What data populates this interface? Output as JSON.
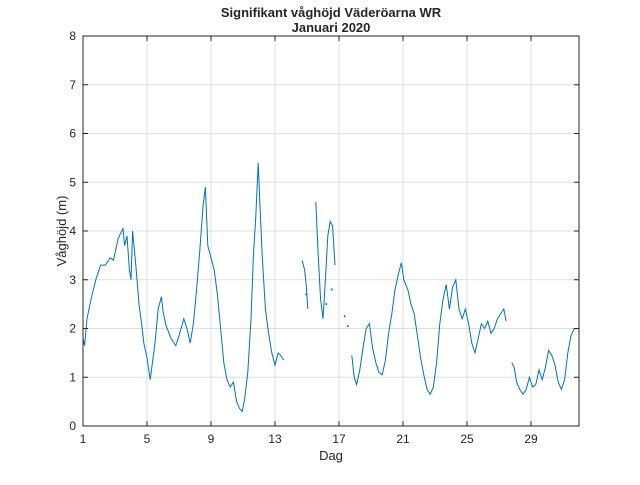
{
  "chart_data": {
    "type": "line",
    "title": "Signifikant våghöjd Väderöarna WR",
    "subtitle": "Januari 2020",
    "xlabel": "Dag",
    "ylabel": "Våghöjd (m)",
    "xlim": [
      1,
      32
    ],
    "ylim": [
      0,
      8
    ],
    "xticks": [
      1,
      5,
      9,
      13,
      17,
      21,
      25,
      29
    ],
    "yticks": [
      0,
      1,
      2,
      3,
      4,
      5,
      6,
      7,
      8
    ],
    "grid": true,
    "series": [
      {
        "name": "Signifikant våghöjd",
        "color": "#0072bd",
        "segments": [
          [
            [
              1.0,
              1.8
            ],
            [
              1.1,
              1.65
            ],
            [
              1.25,
              2.2
            ],
            [
              1.5,
              2.6
            ],
            [
              1.8,
              3.0
            ],
            [
              2.1,
              3.3
            ],
            [
              2.4,
              3.3
            ],
            [
              2.7,
              3.45
            ],
            [
              2.9,
              3.4
            ],
            [
              3.2,
              3.85
            ],
            [
              3.5,
              4.05
            ],
            [
              3.6,
              3.7
            ],
            [
              3.75,
              3.9
            ],
            [
              3.9,
              3.2
            ],
            [
              4.0,
              3.0
            ],
            [
              4.1,
              4.0
            ],
            [
              4.3,
              3.3
            ],
            [
              4.5,
              2.5
            ],
            [
              4.7,
              2.0
            ],
            [
              4.8,
              1.7
            ],
            [
              5.0,
              1.4
            ],
            [
              5.2,
              0.95
            ],
            [
              5.3,
              1.2
            ],
            [
              5.5,
              1.7
            ],
            [
              5.7,
              2.4
            ],
            [
              5.9,
              2.65
            ],
            [
              6.0,
              2.35
            ],
            [
              6.2,
              2.05
            ],
            [
              6.5,
              1.8
            ],
            [
              6.8,
              1.65
            ],
            [
              7.0,
              1.85
            ],
            [
              7.3,
              2.2
            ],
            [
              7.5,
              2.0
            ],
            [
              7.7,
              1.7
            ],
            [
              7.9,
              2.1
            ],
            [
              8.1,
              2.8
            ],
            [
              8.3,
              3.6
            ],
            [
              8.5,
              4.5
            ],
            [
              8.65,
              4.9
            ],
            [
              8.8,
              3.7
            ],
            [
              9.0,
              3.45
            ],
            [
              9.2,
              3.2
            ],
            [
              9.4,
              2.7
            ],
            [
              9.6,
              2.0
            ],
            [
              9.8,
              1.3
            ],
            [
              10.0,
              0.95
            ],
            [
              10.2,
              0.8
            ],
            [
              10.4,
              0.9
            ],
            [
              10.6,
              0.5
            ],
            [
              10.8,
              0.35
            ],
            [
              10.95,
              0.3
            ],
            [
              11.1,
              0.55
            ],
            [
              11.3,
              1.1
            ],
            [
              11.5,
              2.2
            ],
            [
              11.65,
              3.5
            ],
            [
              11.8,
              4.3
            ],
            [
              11.95,
              5.4
            ],
            [
              12.05,
              4.6
            ],
            [
              12.2,
              3.5
            ],
            [
              12.4,
              2.4
            ],
            [
              12.6,
              1.9
            ],
            [
              12.8,
              1.5
            ],
            [
              13.0,
              1.25
            ],
            [
              13.2,
              1.5
            ],
            [
              13.35,
              1.45
            ],
            [
              13.55,
              1.35
            ]
          ],
          [
            [
              14.7,
              3.4
            ],
            [
              14.85,
              3.2
            ],
            [
              14.95,
              2.9
            ],
            [
              15.05,
              2.4
            ]
          ],
          [
            [
              15.55,
              4.6
            ],
            [
              15.7,
              3.5
            ],
            [
              15.85,
              2.6
            ],
            [
              16.0,
              2.2
            ],
            [
              16.15,
              3.0
            ],
            [
              16.3,
              3.9
            ],
            [
              16.45,
              4.2
            ],
            [
              16.6,
              4.1
            ],
            [
              16.75,
              3.3
            ]
          ],
          [
            [
              17.8,
              1.45
            ],
            [
              17.95,
              1.0
            ],
            [
              18.1,
              0.85
            ],
            [
              18.3,
              1.15
            ],
            [
              18.5,
              1.6
            ],
            [
              18.7,
              2.0
            ],
            [
              18.9,
              2.1
            ],
            [
              19.1,
              1.6
            ],
            [
              19.3,
              1.3
            ],
            [
              19.5,
              1.1
            ],
            [
              19.7,
              1.05
            ],
            [
              19.9,
              1.35
            ],
            [
              20.1,
              1.9
            ],
            [
              20.3,
              2.3
            ],
            [
              20.5,
              2.8
            ],
            [
              20.7,
              3.1
            ],
            [
              20.9,
              3.35
            ],
            [
              21.05,
              3.0
            ],
            [
              21.3,
              2.8
            ],
            [
              21.5,
              2.5
            ],
            [
              21.7,
              2.3
            ],
            [
              21.9,
              1.85
            ],
            [
              22.1,
              1.4
            ],
            [
              22.3,
              1.05
            ],
            [
              22.5,
              0.75
            ],
            [
              22.7,
              0.65
            ],
            [
              22.9,
              0.8
            ],
            [
              23.1,
              1.3
            ],
            [
              23.3,
              2.1
            ],
            [
              23.5,
              2.6
            ],
            [
              23.7,
              2.9
            ],
            [
              23.9,
              2.4
            ],
            [
              24.1,
              2.85
            ],
            [
              24.3,
              3.0
            ],
            [
              24.5,
              2.4
            ],
            [
              24.7,
              2.2
            ],
            [
              24.9,
              2.4
            ],
            [
              25.1,
              2.1
            ],
            [
              25.3,
              1.7
            ],
            [
              25.5,
              1.5
            ],
            [
              25.7,
              1.8
            ],
            [
              25.9,
              2.1
            ],
            [
              26.1,
              2.0
            ],
            [
              26.3,
              2.15
            ],
            [
              26.5,
              1.9
            ],
            [
              26.7,
              2.0
            ],
            [
              26.9,
              2.2
            ],
            [
              27.1,
              2.3
            ],
            [
              27.3,
              2.4
            ],
            [
              27.45,
              2.15
            ]
          ],
          [
            [
              27.8,
              1.3
            ],
            [
              27.95,
              1.2
            ],
            [
              28.1,
              0.9
            ],
            [
              28.3,
              0.75
            ],
            [
              28.5,
              0.65
            ],
            [
              28.7,
              0.75
            ],
            [
              28.9,
              1.0
            ],
            [
              29.1,
              0.8
            ],
            [
              29.3,
              0.85
            ],
            [
              29.5,
              1.15
            ],
            [
              29.7,
              0.95
            ],
            [
              29.9,
              1.2
            ],
            [
              30.1,
              1.55
            ],
            [
              30.3,
              1.45
            ],
            [
              30.5,
              1.25
            ],
            [
              30.7,
              0.9
            ],
            [
              30.9,
              0.75
            ],
            [
              31.1,
              0.95
            ],
            [
              31.3,
              1.5
            ],
            [
              31.5,
              1.85
            ],
            [
              31.7,
              2.0
            ],
            [
              31.9,
              2.0
            ]
          ]
        ],
        "isolated_points": [
          [
            14.95,
            2.7
          ],
          [
            16.2,
            2.5
          ],
          [
            16.55,
            2.8
          ],
          [
            17.35,
            2.25
          ],
          [
            17.55,
            2.05
          ]
        ]
      }
    ]
  }
}
